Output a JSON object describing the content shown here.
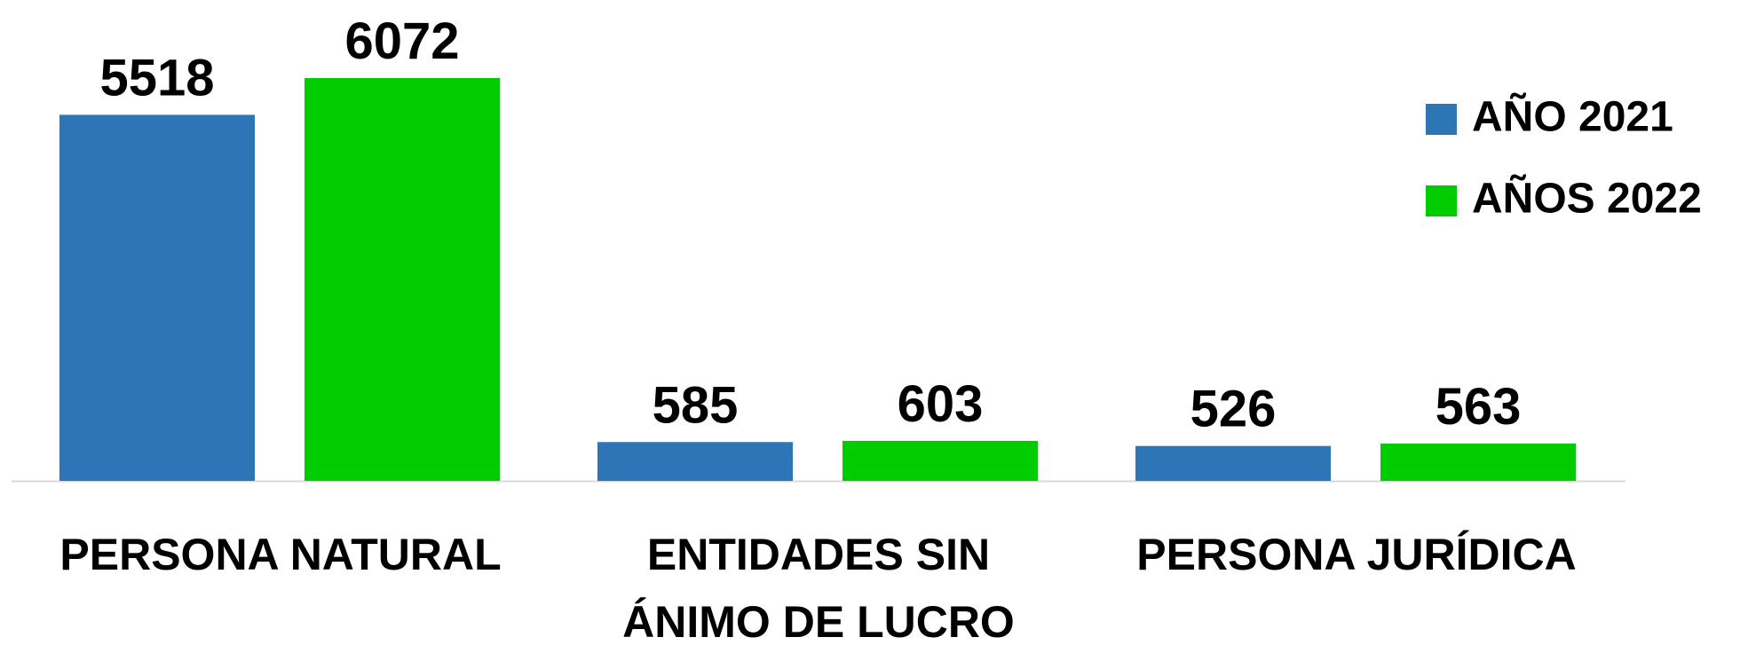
{
  "chart_data": {
    "type": "bar",
    "categories": [
      "PERSONA NATURAL",
      "ENTIDADES SIN\nÁNIMO DE LUCRO",
      "PERSONA JURÍDICA"
    ],
    "series": [
      {
        "name": "AÑO 2021",
        "color": "#2E75B6",
        "values": [
          5518,
          585,
          526
        ]
      },
      {
        "name": "AÑOS 2022",
        "color": "#00CC00",
        "values": [
          6072,
          603,
          563
        ]
      }
    ],
    "legend": "top-right"
  }
}
